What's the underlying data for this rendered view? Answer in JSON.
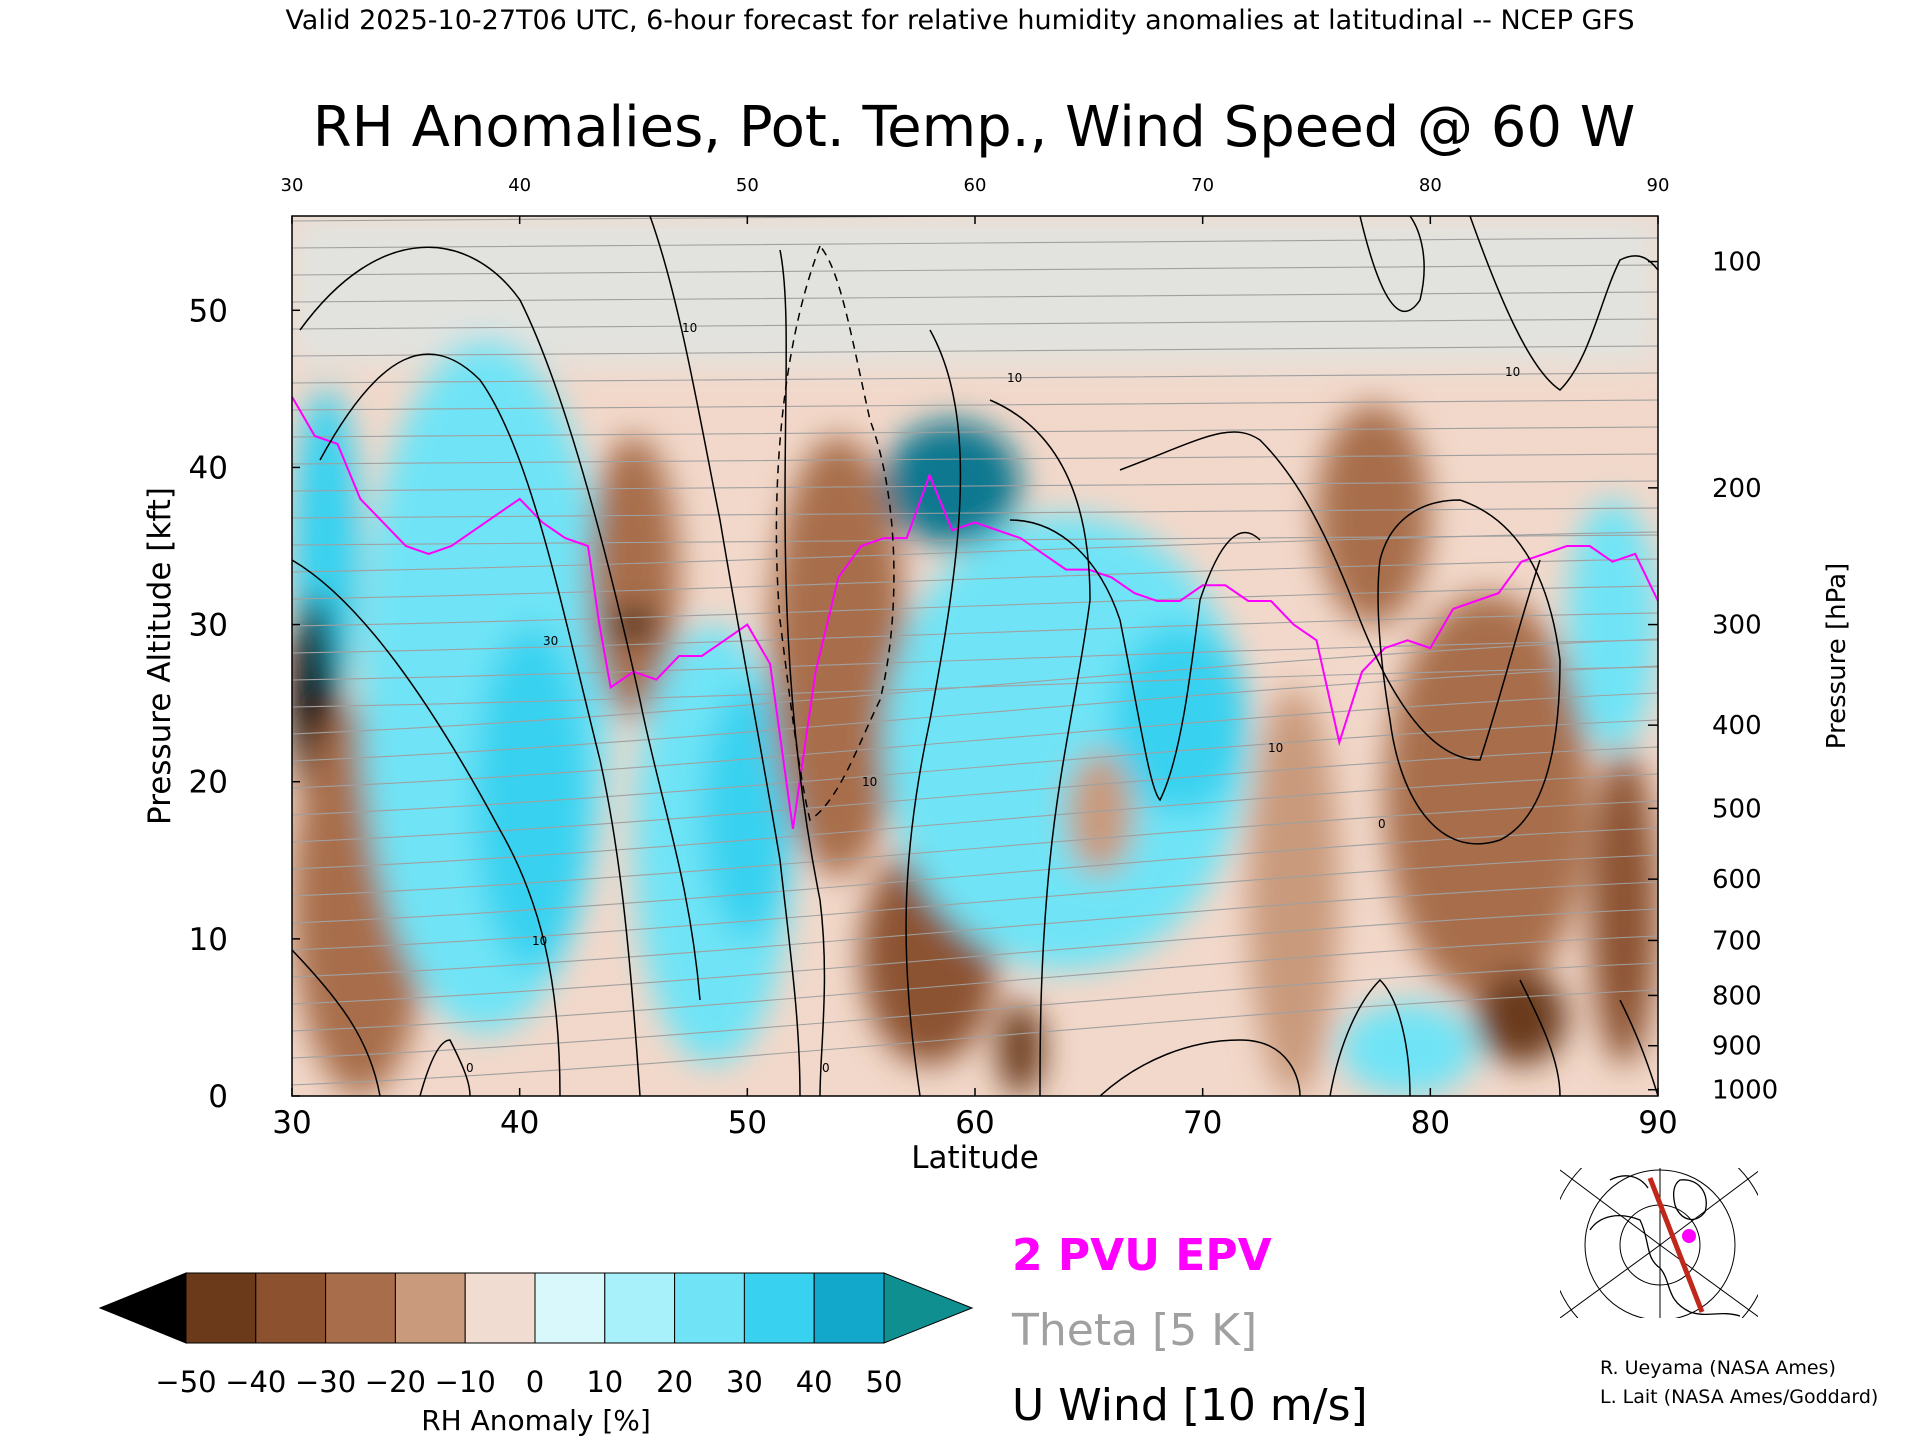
{
  "header": {
    "valid_line": "Valid 2025-10-27T06 UTC, 6-hour forecast for relative humidity anomalies at latitudinal -- NCEP GFS"
  },
  "chart_data": {
    "type": "heatmap",
    "title": "RH Anomalies, Pot. Temp., Wind Speed @ 60 W",
    "xlabel": "Latitude",
    "ylabel": "Pressure Altitude [kft]",
    "y2label": "Pressure [hPa]",
    "xlim": [
      30,
      90
    ],
    "ylim": [
      0,
      56
    ],
    "xticks": [
      "30",
      "40",
      "50",
      "60",
      "70",
      "80",
      "90"
    ],
    "yticks": [
      "0",
      "10",
      "20",
      "30",
      "40",
      "50"
    ],
    "pressure_ticks": [
      {
        "label": "100",
        "kft": 53.1
      },
      {
        "label": "200",
        "kft": 38.7
      },
      {
        "label": "300",
        "kft": 30.0
      },
      {
        "label": "400",
        "kft": 23.6
      },
      {
        "label": "500",
        "kft": 18.3
      },
      {
        "label": "600",
        "kft": 13.8
      },
      {
        "label": "700",
        "kft": 9.9
      },
      {
        "label": "800",
        "kft": 6.4
      },
      {
        "label": "900",
        "kft": 3.2
      },
      {
        "label": "1000",
        "kft": 0.4
      }
    ],
    "colorbar": {
      "label": "RH Anomaly [%]",
      "ticks": [
        "−50",
        "−40",
        "−30",
        "−20",
        "−10",
        "0",
        "10",
        "20",
        "30",
        "40",
        "50"
      ],
      "colors": [
        "#3b1a08",
        "#6b3a1a",
        "#8c5230",
        "#a86e4c",
        "#c99a7c",
        "#f0dcd0",
        "#d8f8fc",
        "#a8f0fa",
        "#70e4f6",
        "#38d2f0",
        "#12a8cc",
        "#0e7890"
      ],
      "under_color": "#000000",
      "over_color": "#0f8f8f"
    },
    "legend": {
      "epv": "2 PVU EPV",
      "theta": "Theta [5 K]",
      "wind": "U Wind [10 m/s]",
      "epv_color": "#ff00ff",
      "theta_color": "#a0a0a0",
      "wind_color": "#000000"
    },
    "epv_2pvu": {
      "lat": [
        30,
        31,
        32,
        33,
        34,
        35,
        36,
        37,
        38,
        39,
        40,
        41,
        42,
        43,
        43.5,
        44,
        45,
        46,
        47,
        48,
        49,
        50,
        51,
        52,
        53,
        54,
        55,
        56,
        57,
        58,
        59,
        60,
        61,
        62,
        63,
        64,
        65,
        66,
        67,
        68,
        69,
        70,
        71,
        72,
        73,
        74,
        75,
        76,
        77,
        78,
        79,
        80,
        81,
        82,
        83,
        84,
        85,
        86,
        87,
        88,
        89,
        90
      ],
      "kft": [
        44.5,
        42,
        41.5,
        38,
        36.5,
        35,
        34.5,
        35,
        36,
        37,
        38,
        36.5,
        35.5,
        35,
        30,
        26,
        27,
        26.5,
        28,
        28,
        29,
        30,
        27.5,
        17,
        27,
        33,
        35,
        35.5,
        35.5,
        39.5,
        36,
        36.5,
        36,
        35.5,
        34.5,
        33.5,
        33.5,
        33,
        32,
        31.5,
        31.5,
        32.5,
        32.5,
        31.5,
        31.5,
        30,
        29,
        22.5,
        27,
        28.5,
        29,
        28.5,
        31,
        31.5,
        32,
        34,
        34.5,
        35,
        35,
        34,
        34.5,
        31.5
      ]
    },
    "rh_anomaly_zones": [
      {
        "lat": [
          30,
          33
        ],
        "kft": [
          25,
          45
        ],
        "value": 35
      },
      {
        "lat": [
          30,
          32
        ],
        "kft": [
          18,
          32
        ],
        "value": -55
      },
      {
        "lat": [
          30,
          36
        ],
        "kft": [
          0,
          25
        ],
        "value": -25
      },
      {
        "lat": [
          33,
          44
        ],
        "kft": [
          4,
          48
        ],
        "value": 22
      },
      {
        "lat": [
          38,
          43
        ],
        "kft": [
          8,
          30
        ],
        "value": 35
      },
      {
        "lat": [
          43,
          47
        ],
        "kft": [
          24,
          42
        ],
        "value": -30
      },
      {
        "lat": [
          44,
          46
        ],
        "kft": [
          29,
          31
        ],
        "value": -50
      },
      {
        "lat": [
          45,
          52
        ],
        "kft": [
          2,
          30
        ],
        "value": 20
      },
      {
        "lat": [
          48,
          52
        ],
        "kft": [
          10,
          26
        ],
        "value": 32
      },
      {
        "lat": [
          51,
          57
        ],
        "kft": [
          14,
          42
        ],
        "value": -22
      },
      {
        "lat": [
          55,
          61
        ],
        "kft": [
          2,
          16
        ],
        "value": -35
      },
      {
        "lat": [
          61,
          63
        ],
        "kft": [
          0,
          6
        ],
        "value": -45
      },
      {
        "lat": [
          56,
          62
        ],
        "kft": [
          35,
          43
        ],
        "value": 50
      },
      {
        "lat": [
          56,
          72
        ],
        "kft": [
          8,
          37
        ],
        "value": 25
      },
      {
        "lat": [
          64,
          67
        ],
        "kft": [
          14,
          22
        ],
        "value": -15
      },
      {
        "lat": [
          66,
          72
        ],
        "kft": [
          18,
          30
        ],
        "value": 35
      },
      {
        "lat": [
          72,
          76
        ],
        "kft": [
          0,
          26
        ],
        "value": -18
      },
      {
        "lat": [
          75,
          80
        ],
        "kft": [
          30,
          44
        ],
        "value": -30
      },
      {
        "lat": [
          78,
          87
        ],
        "kft": [
          6,
          32
        ],
        "value": -28
      },
      {
        "lat": [
          82,
          86
        ],
        "kft": [
          2,
          8
        ],
        "value": -42
      },
      {
        "lat": [
          87,
          90
        ],
        "kft": [
          2,
          22
        ],
        "value": -40
      },
      {
        "lat": [
          86,
          90
        ],
        "kft": [
          22,
          38
        ],
        "value": 25
      },
      {
        "lat": [
          76,
          82
        ],
        "kft": [
          0,
          6
        ],
        "value": 20
      }
    ]
  },
  "inset": {
    "credit_1": "R. Ueyama (NASA Ames)",
    "credit_2": "L. Lait (NASA Ames/Goddard)"
  }
}
